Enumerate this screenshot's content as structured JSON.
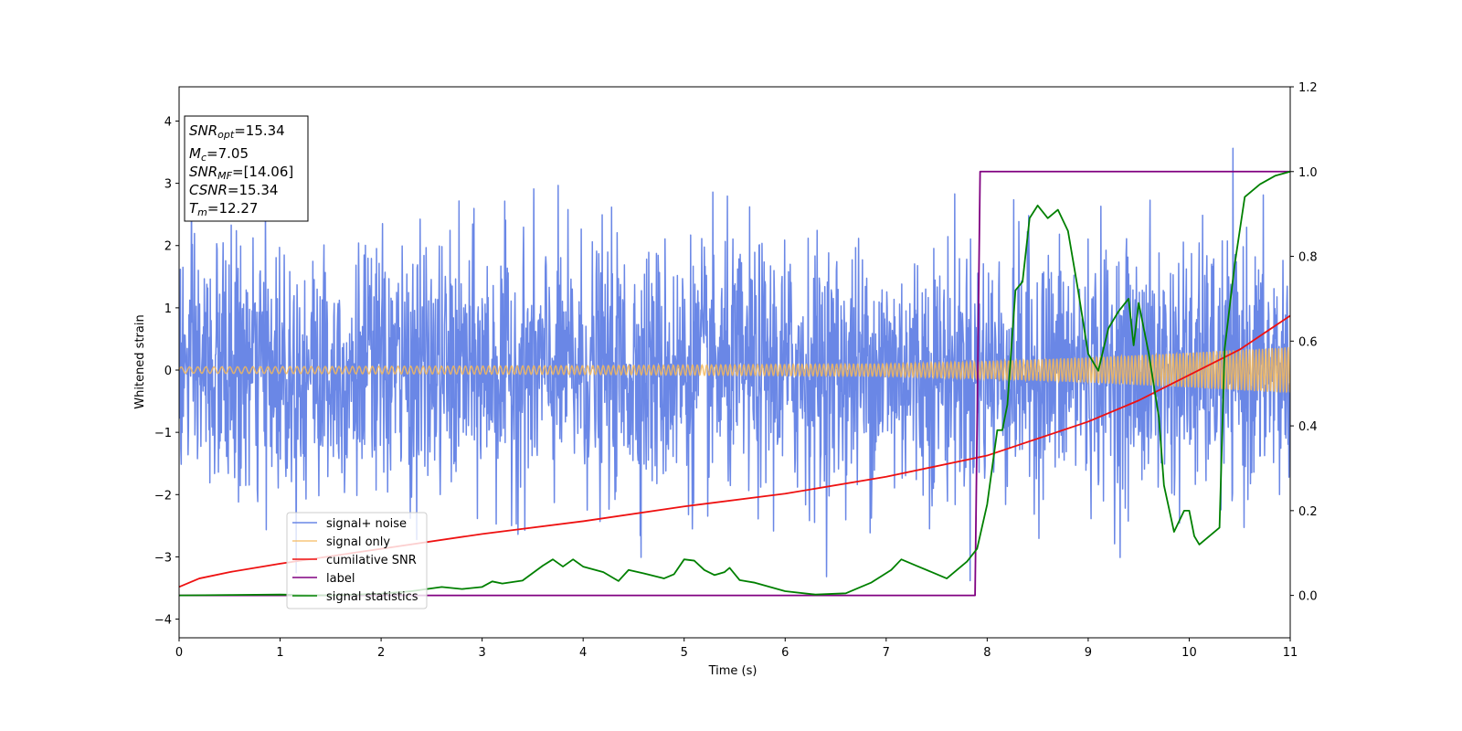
{
  "chart_data": {
    "type": "line",
    "title": "",
    "xlabel": "Time (s)",
    "ylabel": "Whitened strain",
    "xlim": [
      0,
      11
    ],
    "ylim": [
      -4.3,
      4.55
    ],
    "y2lim": [
      -0.1,
      1.2
    ],
    "xticks": [
      "0",
      "1",
      "2",
      "3",
      "4",
      "5",
      "6",
      "7",
      "8",
      "9",
      "10",
      "11"
    ],
    "yticks": [
      "−4",
      "−3",
      "−2",
      "−1",
      "0",
      "1",
      "2",
      "3",
      "4"
    ],
    "y2ticks": [
      "0.0",
      "0.2",
      "0.4",
      "0.6",
      "0.8",
      "1.0",
      "1.2"
    ],
    "grid": false,
    "legend_position": "lower-left",
    "annotation": {
      "snr_opt_label": "SNR",
      "snr_opt_sub": "opt",
      "snr_opt_value": "=15.34",
      "mc_label": "M",
      "mc_sub": "c",
      "mc_value": "=7.05",
      "snr_mf_label": "SNR",
      "snr_mf_sub": "MF",
      "snr_mf_value": "=[14.06]",
      "csnr_label": "CSNR",
      "csnr_value": "=15.34",
      "tm_label": "T",
      "tm_sub": "m",
      "tm_value": "=12.27"
    },
    "series": [
      {
        "name": "signal+ noise",
        "color": "#6a87e6",
        "axis": "left",
        "noise_amplitude_std": 1.0,
        "peak_max": 4.18,
        "peak_min": -3.9
      },
      {
        "name": "signal only",
        "color": "#f5b85a",
        "axis": "left",
        "envelope": {
          "x": [
            0,
            2,
            4,
            6,
            7,
            8,
            9,
            10,
            11
          ],
          "amplitude": [
            0.05,
            0.06,
            0.07,
            0.09,
            0.1,
            0.14,
            0.2,
            0.28,
            0.37
          ]
        }
      },
      {
        "name": "cumilative SNR",
        "color": "#ee1111",
        "axis": "right",
        "x": [
          0,
          0.2,
          0.5,
          1,
          2,
          3,
          4,
          5,
          6,
          7,
          8,
          9,
          9.5,
          10,
          10.5,
          11
        ],
        "y": [
          0.02,
          0.04,
          0.055,
          0.075,
          0.11,
          0.145,
          0.175,
          0.21,
          0.24,
          0.28,
          0.33,
          0.41,
          0.46,
          0.52,
          0.58,
          0.66
        ]
      },
      {
        "name": "label",
        "color": "#800080",
        "axis": "right",
        "x": [
          0,
          7.88,
          7.93,
          11
        ],
        "y": [
          0,
          0,
          1,
          1
        ]
      },
      {
        "name": "signal statistics",
        "color": "#008000",
        "axis": "right",
        "x": [
          0,
          0.5,
          1,
          1.5,
          2,
          2.3,
          2.6,
          2.8,
          3,
          3.1,
          3.2,
          3.4,
          3.6,
          3.7,
          3.8,
          3.9,
          4.0,
          4.2,
          4.35,
          4.45,
          4.6,
          4.8,
          4.9,
          5.0,
          5.1,
          5.2,
          5.3,
          5.4,
          5.45,
          5.55,
          5.7,
          6.0,
          6.3,
          6.6,
          6.75,
          6.85,
          6.95,
          7.05,
          7.15,
          7.3,
          7.45,
          7.6,
          7.8,
          7.9,
          8.0,
          8.1,
          8.15,
          8.2,
          8.28,
          8.35,
          8.42,
          8.5,
          8.6,
          8.7,
          8.8,
          8.9,
          9.0,
          9.1,
          9.2,
          9.3,
          9.4,
          9.45,
          9.5,
          9.6,
          9.7,
          9.75,
          9.85,
          9.95,
          10.0,
          10.05,
          10.1,
          10.15,
          10.2,
          10.3,
          10.35,
          10.45,
          10.55,
          10.7,
          10.85,
          11.0
        ],
        "y": [
          0.0,
          0.001,
          0.002,
          0.0,
          0.004,
          0.01,
          0.02,
          0.015,
          0.02,
          0.033,
          0.028,
          0.035,
          0.07,
          0.085,
          0.068,
          0.085,
          0.068,
          0.055,
          0.034,
          0.06,
          0.052,
          0.04,
          0.05,
          0.085,
          0.082,
          0.06,
          0.048,
          0.055,
          0.065,
          0.036,
          0.03,
          0.01,
          0.002,
          0.005,
          0.02,
          0.03,
          0.045,
          0.06,
          0.085,
          0.07,
          0.055,
          0.04,
          0.08,
          0.11,
          0.215,
          0.39,
          0.39,
          0.45,
          0.72,
          0.74,
          0.89,
          0.92,
          0.89,
          0.91,
          0.86,
          0.72,
          0.57,
          0.53,
          0.63,
          0.67,
          0.7,
          0.59,
          0.69,
          0.57,
          0.42,
          0.26,
          0.15,
          0.2,
          0.2,
          0.14,
          0.12,
          0.13,
          0.14,
          0.16,
          0.58,
          0.78,
          0.94,
          0.97,
          0.99,
          1.0
        ]
      }
    ]
  }
}
